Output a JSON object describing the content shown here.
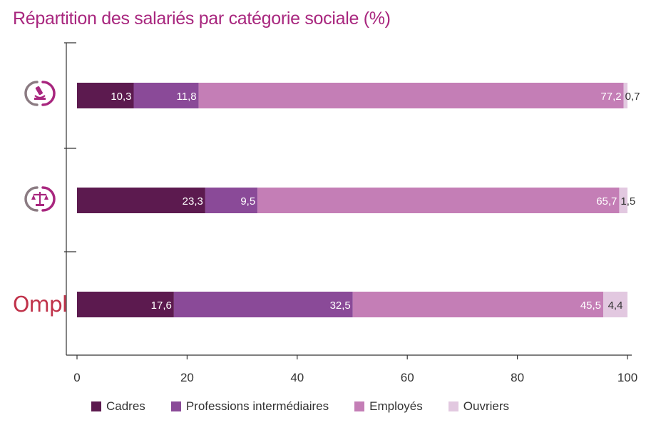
{
  "title": "Répartition des salariés par catégorie sociale (%)",
  "chart_data": {
    "type": "bar",
    "orientation": "horizontal",
    "stacked": true,
    "title": "Répartition des salariés par catégorie sociale (%)",
    "categories": [
      "",
      "",
      "Ompl"
    ],
    "category_icons": [
      "microscope-icon",
      "scales-icon",
      "ompl-logo"
    ],
    "series": [
      {
        "name": "Cadres",
        "values": [
          10.3,
          23.3,
          17.6
        ],
        "labels": [
          "10,3",
          "23,3",
          "17,6"
        ],
        "color": "#5c1a4f"
      },
      {
        "name": "Professions intermédiaires",
        "values": [
          11.8,
          9.5,
          32.5
        ],
        "labels": [
          "11,8",
          "9,5",
          "32,5"
        ],
        "color": "#8a4a98"
      },
      {
        "name": "Employés",
        "values": [
          77.2,
          65.7,
          45.5
        ],
        "labels": [
          "77,2",
          "65,7",
          "45,5"
        ],
        "color": "#c47eb6"
      },
      {
        "name": "Ouvriers",
        "values": [
          0.7,
          1.5,
          4.4
        ],
        "labels": [
          "0,7",
          "1,5",
          "4,4"
        ],
        "color": "#e2c8e0"
      }
    ],
    "xlim": [
      0,
      100
    ],
    "xticks": [
      "0",
      "20",
      "40",
      "60",
      "80",
      "100"
    ],
    "legend_position": "bottom",
    "grid": false
  }
}
